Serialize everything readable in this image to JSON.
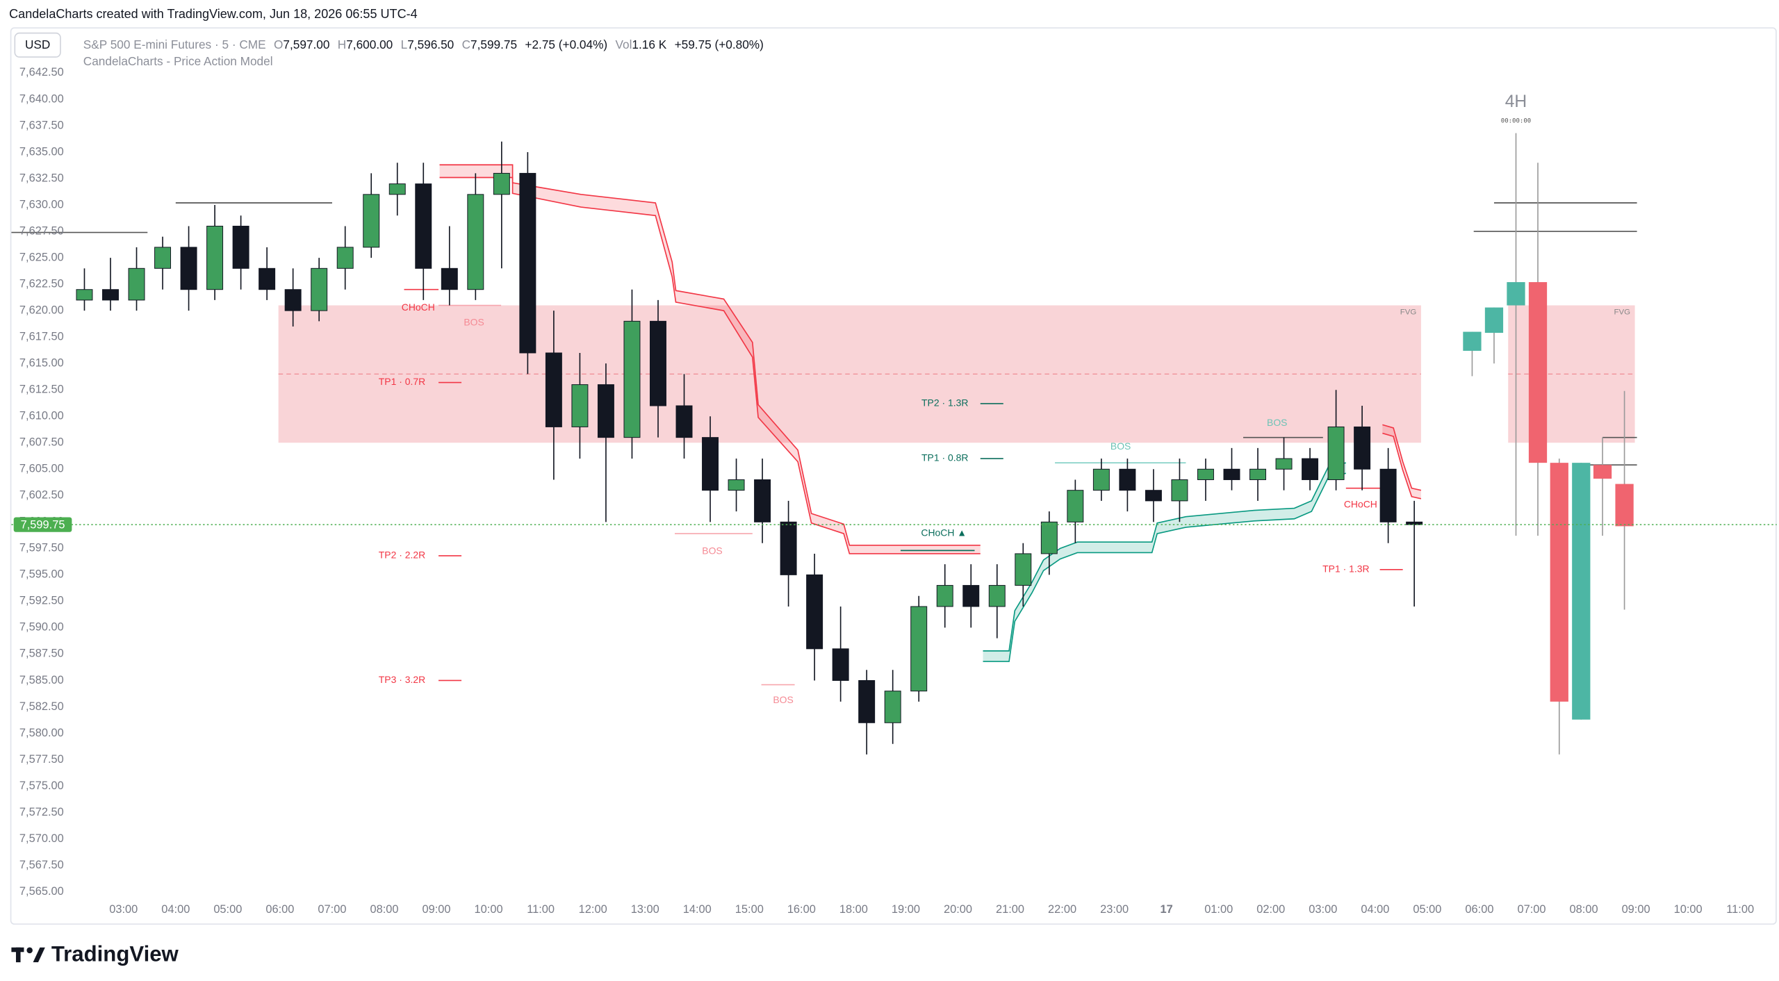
{
  "header": {
    "credit": "CandelaCharts created with TradingView.com, Jun 18, 2026 06:55 UTC-4",
    "currency": "USD",
    "symbol": "S&P 500 E-mini Futures · 5 · CME",
    "o_label": "O",
    "o_value": "7,597.00",
    "h_label": "H",
    "h_value": "7,600.00",
    "l_label": "L",
    "l_value": "7,596.50",
    "c_label": "C",
    "c_value": "7,599.75",
    "change": "+2.75 (+0.04%)",
    "vol_label": "Vol",
    "vol_value": "1.16 K",
    "vol_change": "+59.75 (+0.80%)",
    "indicator": "CandelaCharts - Price Action Model"
  },
  "footer": {
    "logo": "TradingView"
  },
  "chart_data": {
    "type": "candlestick",
    "up_color": "#3f9f5c",
    "down_color": "#131722",
    "xlim": [
      0.85,
      34.7
    ],
    "ylim": [
      7562,
      7646.7
    ],
    "grid": false,
    "xticks": [
      {
        "value": 3,
        "label": "03:00"
      },
      {
        "value": 4,
        "label": "04:00"
      },
      {
        "value": 5,
        "label": "05:00"
      },
      {
        "value": 6,
        "label": "06:00"
      },
      {
        "value": 7,
        "label": "07:00"
      },
      {
        "value": 8,
        "label": "08:00"
      },
      {
        "value": 9,
        "label": "09:00"
      },
      {
        "value": 10,
        "label": "10:00"
      },
      {
        "value": 11,
        "label": "11:00"
      },
      {
        "value": 12,
        "label": "12:00"
      },
      {
        "value": 13,
        "label": "13:00"
      },
      {
        "value": 14,
        "label": "14:00"
      },
      {
        "value": 15,
        "label": "15:00"
      },
      {
        "value": 16,
        "label": "16:00"
      },
      {
        "value": 17,
        "label": "18:00"
      },
      {
        "value": 18,
        "label": "19:00"
      },
      {
        "value": 19,
        "label": "20:00"
      },
      {
        "value": 20,
        "label": "21:00"
      },
      {
        "value": 21,
        "label": "22:00"
      },
      {
        "value": 22,
        "label": "23:00"
      },
      {
        "value": 23,
        "label": "17"
      },
      {
        "value": 24,
        "label": "01:00"
      },
      {
        "value": 25,
        "label": "02:00"
      },
      {
        "value": 26,
        "label": "03:00"
      },
      {
        "value": 27,
        "label": "04:00"
      },
      {
        "value": 28,
        "label": "05:00"
      },
      {
        "value": 29,
        "label": "06:00"
      },
      {
        "value": 30,
        "label": "07:00"
      },
      {
        "value": 31,
        "label": "08:00"
      },
      {
        "value": 32,
        "label": "09:00"
      },
      {
        "value": 33,
        "label": "10:00"
      },
      {
        "value": 34,
        "label": "11:00"
      }
    ],
    "yticks": [
      {
        "value": 7565,
        "label": "7,565.00"
      },
      {
        "value": 7567.5,
        "label": "7,567.50"
      },
      {
        "value": 7570,
        "label": "7,570.00"
      },
      {
        "value": 7572.5,
        "label": "7,572.50"
      },
      {
        "value": 7575,
        "label": "7,575.00"
      },
      {
        "value": 7577.5,
        "label": "7,577.50"
      },
      {
        "value": 7580,
        "label": "7,580.00"
      },
      {
        "value": 7582.5,
        "label": "7,582.50"
      },
      {
        "value": 7585,
        "label": "7,585.00"
      },
      {
        "value": 7587.5,
        "label": "7,587.50"
      },
      {
        "value": 7590,
        "label": "7,590.00"
      },
      {
        "value": 7592.5,
        "label": "7,592.50"
      },
      {
        "value": 7595,
        "label": "7,595.00"
      },
      {
        "value": 7597.5,
        "label": "7,597.50"
      },
      {
        "value": 7600,
        "label": "7,600.00"
      },
      {
        "value": 7602.5,
        "label": "7,602.50"
      },
      {
        "value": 7605,
        "label": "7,605.00"
      },
      {
        "value": 7607.5,
        "label": "7,607.50"
      },
      {
        "value": 7610,
        "label": "7,610.00"
      },
      {
        "value": 7612.5,
        "label": "7,612.50"
      },
      {
        "value": 7615,
        "label": "7,615.00"
      },
      {
        "value": 7617.5,
        "label": "7,617.50"
      },
      {
        "value": 7620,
        "label": "7,620.00"
      },
      {
        "value": 7622.5,
        "label": "7,622.50"
      },
      {
        "value": 7625,
        "label": "7,625.00"
      },
      {
        "value": 7627.5,
        "label": "7,627.50"
      },
      {
        "value": 7630,
        "label": "7,630.00"
      },
      {
        "value": 7632.5,
        "label": "7,632.50"
      },
      {
        "value": 7635,
        "label": "7,635.00"
      },
      {
        "value": 7637.5,
        "label": "7,637.50"
      },
      {
        "value": 7640,
        "label": "7,640.00"
      },
      {
        "value": 7642.5,
        "label": "7,642.50"
      }
    ],
    "candles": {
      "x": [
        2.25,
        2.75,
        3.25,
        3.75,
        4.25,
        4.75,
        5.25,
        5.75,
        6.25,
        6.75,
        7.25,
        7.75,
        8.25,
        8.75,
        9.25,
        9.75,
        10.25,
        10.75,
        11.25,
        11.75,
        12.25,
        12.75,
        13.25,
        13.75,
        14.25,
        14.75,
        15.25,
        15.75,
        16.25,
        16.75,
        17.25,
        17.75,
        18.25,
        18.75,
        19.25,
        19.75,
        20.25,
        20.75,
        21.25,
        21.75,
        22.25,
        22.75,
        23.25,
        23.75,
        24.25,
        24.75,
        25.25,
        25.75,
        26.25,
        26.75,
        27.25,
        27.75
      ],
      "open": [
        7621,
        7622,
        7621,
        7624,
        7626,
        7622,
        7628,
        7624,
        7622,
        7620,
        7624,
        7626,
        7631,
        7632,
        7624,
        7622,
        7631,
        7633,
        7616,
        7609,
        7613,
        7608,
        7619,
        7611,
        7608,
        7603,
        7604,
        7600,
        7595,
        7588,
        7585,
        7581,
        7584,
        7592,
        7594,
        7592,
        7594,
        7597,
        7600,
        7603,
        7605,
        7603,
        7602,
        7604,
        7605,
        7604,
        7605,
        7606,
        7604,
        7609,
        7605,
        7600
      ],
      "high": [
        7624,
        7625,
        7626,
        7627,
        7628,
        7630,
        7629,
        7626,
        7624,
        7625,
        7628,
        7633,
        7634,
        7634,
        7628,
        7633,
        7636,
        7635,
        7620,
        7616,
        7615,
        7622,
        7621,
        7614,
        7610,
        7606,
        7606,
        7602,
        7597,
        7592,
        7586,
        7586,
        7593,
        7596,
        7596,
        7596,
        7598,
        7601,
        7604,
        7606,
        7606,
        7605,
        7606,
        7606,
        7607,
        7607,
        7608,
        7607,
        7612.5,
        7611,
        7607,
        7602
      ],
      "low": [
        7620,
        7620,
        7620,
        7622,
        7620,
        7621,
        7622,
        7621,
        7618.5,
        7619,
        7622,
        7625,
        7629,
        7621,
        7620.5,
        7621,
        7624,
        7614,
        7604,
        7606,
        7600,
        7606,
        7608,
        7606,
        7600,
        7601,
        7598,
        7592,
        7585,
        7583,
        7578,
        7579,
        7583,
        7590,
        7590,
        7589,
        7592,
        7595,
        7598,
        7602,
        7601,
        7600,
        7600,
        7602,
        7603,
        7602,
        7603,
        7603,
        7603,
        7603,
        7598,
        7592
      ],
      "close": [
        7622,
        7621,
        7624,
        7626,
        7622,
        7628,
        7624,
        7622,
        7620,
        7624,
        7626,
        7631,
        7632,
        7624,
        7622,
        7631,
        7633,
        7616,
        7609,
        7613,
        7608,
        7619,
        7611,
        7608,
        7603,
        7604,
        7600,
        7595,
        7588,
        7585,
        7581,
        7584,
        7592,
        7594,
        7592,
        7594,
        7597,
        7600,
        7603,
        7605,
        7603,
        7602,
        7604,
        7605,
        7604,
        7605,
        7606,
        7604,
        7609,
        7605,
        7600,
        7599.75
      ]
    },
    "htf_label": "4H",
    "htf_timer": "00:00:00",
    "htf_candles": {
      "up_color": "#4db6a4",
      "down_color": "#f0646f",
      "x": [
        28.86,
        29.28,
        29.7,
        30.12,
        30.53,
        30.95,
        31.36,
        31.78
      ],
      "open": [
        7616.2,
        7617.9,
        7620.5,
        7622.7,
        7605.6,
        7581.3,
        7605.4,
        7603.6
      ],
      "high": [
        7618,
        7620.3,
        7636.8,
        7634,
        7606,
        7605.6,
        7608,
        7612.4
      ],
      "low": [
        7613.8,
        7615,
        7598.7,
        7598.7,
        7578,
        7581.3,
        7598.7,
        7591.7
      ],
      "close": [
        7618,
        7620.3,
        7622.7,
        7605.6,
        7583,
        7605.6,
        7604.1,
        7599.6
      ]
    },
    "zones": [
      {
        "label": "FVG",
        "color": "#f7c5ca",
        "x0": 5.97,
        "x1": 27.88,
        "top": 7620.5,
        "bottom": 7607.5,
        "mid": 7614
      },
      {
        "label": "FVG",
        "color": "#f7c5ca",
        "x0": 29.55,
        "x1": 31.98,
        "top": 7620.5,
        "bottom": 7607.5,
        "mid": 7614
      }
    ],
    "bands": [
      {
        "color": "#f23645",
        "x": [
          9.06,
          10.46,
          10.46,
          11.77,
          13.2,
          13.52,
          13.59,
          14.51,
          15.06,
          15.17,
          15.93,
          16.19,
          16.81,
          16.92,
          19.43
        ],
        "upper": [
          7633.8,
          7633.8,
          7632.1,
          7631.0,
          7630.2,
          7624.6,
          7621.9,
          7621.1,
          7617.0,
          7611.1,
          7606.8,
          7600.8,
          7599.8,
          7597.8,
          7597.8
        ],
        "lower": [
          7632.6,
          7632.6,
          7631.1,
          7629.8,
          7629.0,
          7623.2,
          7620.8,
          7620.0,
          7615.6,
          7609.9,
          7605.7,
          7599.9,
          7598.9,
          7597.0,
          7597.0
        ]
      },
      {
        "color": "#089981",
        "x": [
          19.48,
          19.98,
          20.09,
          20.42,
          20.64,
          20.96,
          21.29,
          22.72,
          22.82,
          23.37,
          24.68,
          25.45,
          25.78,
          26.11,
          26.44
        ],
        "upper": [
          7587.8,
          7587.8,
          7591.6,
          7594.3,
          7596.4,
          7597.5,
          7598.1,
          7598.1,
          7599.9,
          7600.5,
          7601.1,
          7601.3,
          7602.0,
          7605.3,
          7605.6
        ],
        "lower": [
          7586.8,
          7586.8,
          7590.6,
          7593.3,
          7595.4,
          7596.5,
          7597.1,
          7597.1,
          7598.9,
          7599.5,
          7600.1,
          7600.3,
          7601.0,
          7604.3,
          7604.6
        ]
      },
      {
        "color": "#f23645",
        "x": [
          27.14,
          27.35,
          27.53,
          27.7,
          27.88
        ],
        "upper": [
          7609.2,
          7608.9,
          7605.7,
          7603.2,
          7603.0
        ],
        "lower": [
          7608.4,
          7608.1,
          7604.9,
          7602.4,
          7602.2
        ]
      }
    ],
    "levels": [
      {
        "price": 7627.4,
        "x0": 0.85,
        "x1": 3.46,
        "color": "#555555"
      },
      {
        "price": 7630.2,
        "x0": 4.0,
        "x1": 7.0,
        "color": "#555555"
      },
      {
        "price": 7622,
        "x0": 8.38,
        "x1": 9.04,
        "color": "#f23645"
      },
      {
        "price": 7620.5,
        "x0": 9.04,
        "x1": 10.24,
        "color": "#f7a6ad"
      },
      {
        "price": 7598.9,
        "x0": 13.57,
        "x1": 15.06,
        "color": "#f7a6ad"
      },
      {
        "price": 7584.6,
        "x0": 15.23,
        "x1": 15.87,
        "color": "#f7a6ad"
      },
      {
        "price": 7597.3,
        "x0": 17.9,
        "x1": 19.32,
        "color": "#0b6e5c"
      },
      {
        "price": 7605.6,
        "x0": 20.86,
        "x1": 23.37,
        "color": "#7fcfc4"
      },
      {
        "price": 7608.0,
        "x0": 24.47,
        "x1": 26.0,
        "color": "#555555"
      },
      {
        "price": 7603.2,
        "x0": 26.44,
        "x1": 27.14,
        "color": "#f23645"
      },
      {
        "price": 7613.2,
        "x0": 9.04,
        "x1": 9.48,
        "color": "#f23645"
      },
      {
        "price": 7596.8,
        "x0": 9.04,
        "x1": 9.48,
        "color": "#f23645"
      },
      {
        "price": 7585.0,
        "x0": 9.04,
        "x1": 9.48,
        "color": "#f23645"
      },
      {
        "price": 7611.2,
        "x0": 19.43,
        "x1": 19.87,
        "color": "#0b6e5c"
      },
      {
        "price": 7606.0,
        "x0": 19.43,
        "x1": 19.87,
        "color": "#0b6e5c"
      },
      {
        "price": 7595.5,
        "x0": 27.09,
        "x1": 27.53,
        "color": "#f23645"
      },
      {
        "price": 7630.2,
        "x0": 29.28,
        "x1": 32.02,
        "color": "#555555"
      },
      {
        "price": 7627.5,
        "x0": 28.89,
        "x1": 32.02,
        "color": "#555555"
      },
      {
        "price": 7608.0,
        "x0": 31.36,
        "x1": 32.02,
        "color": "#555555"
      },
      {
        "price": 7605.4,
        "x0": 30.81,
        "x1": 32.02,
        "color": "#555555"
      }
    ],
    "annotations": [
      {
        "text": "CHoCH",
        "x": 8.65,
        "price": 7620.25,
        "color": "#f23645"
      },
      {
        "text": "BOS",
        "x": 9.72,
        "price": 7618.85,
        "color": "#f58a94"
      },
      {
        "text": "TP1 · 0.7R",
        "x": 8.34,
        "price": 7613.2,
        "color": "#f23645"
      },
      {
        "text": "TP2 · 2.2R",
        "x": 8.34,
        "price": 7596.8,
        "color": "#f23645"
      },
      {
        "text": "TP3 · 3.2R",
        "x": 8.34,
        "price": 7585.0,
        "color": "#f23645"
      },
      {
        "text": "BOS",
        "x": 14.29,
        "price": 7597.2,
        "color": "#f58a94"
      },
      {
        "text": "BOS",
        "x": 15.65,
        "price": 7583.1,
        "color": "#f58a94"
      },
      {
        "text": "CHoCH ▲",
        "x": 18.73,
        "price": 7598.9,
        "color": "#0b6e5c"
      },
      {
        "text": "TP2 · 1.3R",
        "x": 18.75,
        "price": 7611.2,
        "color": "#0b6e5c"
      },
      {
        "text": "TP1 · 0.8R",
        "x": 18.75,
        "price": 7606.0,
        "color": "#0b6e5c"
      },
      {
        "text": "BOS",
        "x": 22.12,
        "price": 7607.1,
        "color": "#6cc3b6"
      },
      {
        "text": "BOS",
        "x": 25.12,
        "price": 7609.35,
        "color": "#6cc3b6"
      },
      {
        "text": "CHoCH",
        "x": 26.72,
        "price": 7601.6,
        "color": "#f23645"
      },
      {
        "text": "TP1 · 1.3R",
        "x": 26.44,
        "price": 7595.5,
        "color": "#f23645"
      }
    ],
    "last_price": {
      "value": 7599.75,
      "label": "7,599.75",
      "color": "#4caf50"
    }
  }
}
